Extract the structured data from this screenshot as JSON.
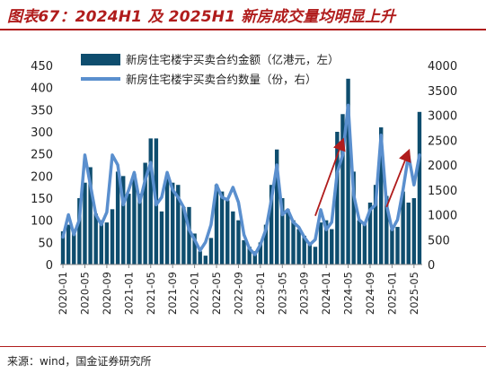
{
  "header": {
    "title": "图表67：2024H1 及 2025H1 新房成交量均明显上升",
    "source": "来源：wind，国金证券研究所"
  },
  "chart_data": {
    "type": "bar+line",
    "x": [
      "2020-01",
      "2020-02",
      "2020-03",
      "2020-04",
      "2020-05",
      "2020-06",
      "2020-07",
      "2020-08",
      "2020-09",
      "2020-10",
      "2020-11",
      "2020-12",
      "2021-01",
      "2021-02",
      "2021-03",
      "2021-04",
      "2021-05",
      "2021-06",
      "2021-07",
      "2021-08",
      "2021-09",
      "2021-10",
      "2021-11",
      "2021-12",
      "2022-01",
      "2022-02",
      "2022-03",
      "2022-04",
      "2022-05",
      "2022-06",
      "2022-07",
      "2022-08",
      "2022-09",
      "2022-10",
      "2022-11",
      "2022-12",
      "2023-01",
      "2023-02",
      "2023-03",
      "2023-04",
      "2023-05",
      "2023-06",
      "2023-07",
      "2023-08",
      "2023-09",
      "2023-10",
      "2023-11",
      "2023-12",
      "2024-01",
      "2024-02",
      "2024-03",
      "2024-04",
      "2024-05",
      "2024-06",
      "2024-07",
      "2024-08",
      "2024-09",
      "2024-10",
      "2024-11",
      "2024-12",
      "2025-01",
      "2025-02",
      "2025-03",
      "2025-04",
      "2025-05",
      "2025-06"
    ],
    "x_tick_labels": [
      "2020-01",
      "2020-05",
      "2020-09",
      "2021-01",
      "2021-05",
      "2021-09",
      "2022-01",
      "2022-05",
      "2022-09",
      "2023-01",
      "2023-05",
      "2023-09",
      "2024-01",
      "2024-05",
      "2024-09",
      "2025-01",
      "2025-05"
    ],
    "series": [
      {
        "name": "新房住宅楼宇买卖合约金额（亿港元，左）",
        "type": "bar",
        "axis": "left",
        "color": "#0e4d6e",
        "values": [
          75,
          90,
          80,
          150,
          185,
          220,
          115,
          100,
          95,
          125,
          210,
          200,
          160,
          205,
          160,
          230,
          285,
          285,
          120,
          195,
          185,
          180,
          130,
          130,
          70,
          30,
          20,
          60,
          180,
          165,
          145,
          120,
          100,
          55,
          40,
          30,
          50,
          90,
          180,
          260,
          150,
          125,
          100,
          80,
          65,
          45,
          40,
          95,
          100,
          80,
          300,
          340,
          420,
          210,
          100,
          95,
          140,
          180,
          310,
          155,
          80,
          85,
          165,
          140,
          150,
          345
        ]
      },
      {
        "name": "新房住宅楼宇买卖合约数量（份，右）",
        "type": "line",
        "axis": "right",
        "color": "#5a8fce",
        "values": [
          550,
          1000,
          600,
          900,
          2200,
          1600,
          1000,
          800,
          1050,
          2200,
          2000,
          1200,
          1500,
          1850,
          1250,
          1700,
          2050,
          1200,
          1350,
          1850,
          1500,
          1350,
          1150,
          700,
          500,
          280,
          450,
          800,
          1600,
          1350,
          1300,
          1550,
          1250,
          600,
          320,
          200,
          400,
          700,
          1300,
          2000,
          1000,
          1100,
          850,
          750,
          550,
          400,
          500,
          1100,
          700,
          850,
          1850,
          2200,
          3200,
          1400,
          900,
          800,
          1100,
          1200,
          2600,
          1200,
          700,
          900,
          1500,
          2200,
          1600,
          2200
        ]
      }
    ],
    "y_left": {
      "min": 0,
      "max": 450,
      "ticks": [
        0,
        50,
        100,
        150,
        200,
        250,
        300,
        350,
        400,
        450
      ]
    },
    "y_right": {
      "min": 0,
      "max": 4000,
      "ticks": [
        0,
        500,
        1000,
        1500,
        2000,
        2500,
        3000,
        3500,
        4000
      ]
    },
    "annotations": [
      {
        "type": "arrow",
        "color": "#b01c1c",
        "from_month": "2023-11",
        "from_value_left": 110,
        "to_month": "2024-04",
        "to_value_left": 280
      },
      {
        "type": "arrow",
        "color": "#b01c1c",
        "from_month": "2024-12",
        "from_value_left": 130,
        "to_month": "2025-04",
        "to_value_left": 255
      }
    ],
    "legend_position": "top-left-inside",
    "grid": false
  }
}
